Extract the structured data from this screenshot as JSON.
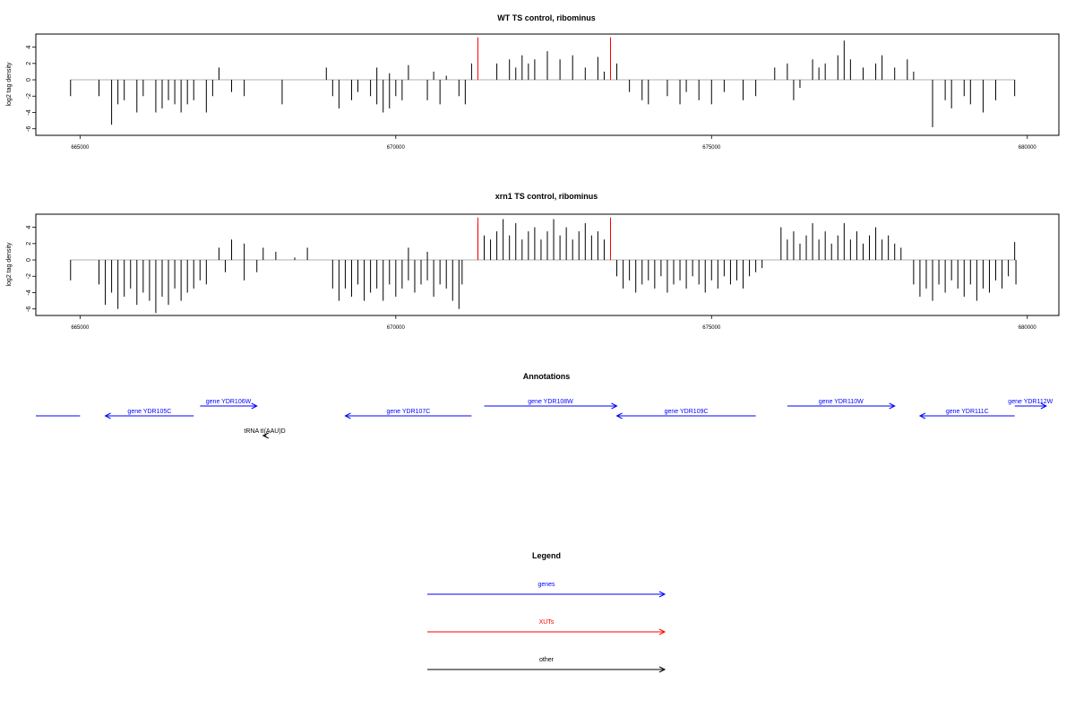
{
  "colors": {
    "genes": "#0000ff",
    "xuts": "#ff0000",
    "other": "#000000",
    "axis": "#000000",
    "baseline": "#999999"
  },
  "chart_data": [
    {
      "type": "bar",
      "title": "WT TS control, ribominus",
      "ylabel": "log2 tag density",
      "xlim": [
        664300,
        680500
      ],
      "ylim": [
        -6.8,
        5.6
      ],
      "xticks": [
        665000,
        670000,
        675000,
        680000
      ],
      "xtick_labels": [
        "665000",
        "670000",
        "675000",
        "680000"
      ],
      "yticks": [
        -6,
        -4,
        -2,
        0,
        2,
        4
      ],
      "ytick_labels": [
        "-6",
        "-4",
        "-2",
        "0",
        "2",
        "4"
      ],
      "grid": false,
      "series": [
        {
          "values": [
            [
              664850,
              -2.0
            ],
            [
              665300,
              -2.0
            ],
            [
              665500,
              -5.5
            ],
            [
              665600,
              -3.0
            ],
            [
              665700,
              -2.5
            ],
            [
              665900,
              -4.0
            ],
            [
              666000,
              -2.0
            ],
            [
              666200,
              -4.0
            ],
            [
              666300,
              -3.5
            ],
            [
              666400,
              -2.5
            ],
            [
              666500,
              -3.0
            ],
            [
              666600,
              -4.0
            ],
            [
              666700,
              -3.0
            ],
            [
              666800,
              -2.5
            ],
            [
              667000,
              -4.0
            ],
            [
              667100,
              -2.0
            ],
            [
              667200,
              1.5
            ],
            [
              667400,
              -1.5
            ],
            [
              667600,
              -2.0
            ],
            [
              668200,
              -3.0
            ],
            [
              668900,
              1.5
            ],
            [
              669000,
              -2.0
            ],
            [
              669100,
              -3.5
            ],
            [
              669300,
              -2.5
            ],
            [
              669400,
              -1.5
            ],
            [
              669600,
              -2.0
            ],
            [
              669700,
              -3.0
            ],
            [
              669800,
              -4.0
            ],
            [
              669900,
              -3.5
            ],
            [
              670000,
              -2.0
            ],
            [
              670100,
              -2.5
            ],
            [
              669900,
              0.8
            ],
            [
              669700,
              1.5
            ],
            [
              670200,
              1.8
            ],
            [
              670500,
              -2.5
            ],
            [
              670600,
              1.0
            ],
            [
              670700,
              -3.0
            ],
            [
              670800,
              0.5
            ],
            [
              671000,
              -2.0
            ],
            [
              671100,
              -3.0
            ],
            [
              671200,
              2.0
            ],
            [
              671600,
              2.0
            ],
            [
              671800,
              2.5
            ],
            [
              671900,
              1.5
            ],
            [
              672000,
              3.0
            ],
            [
              672100,
              2.0
            ],
            [
              672200,
              2.5
            ],
            [
              672400,
              3.5
            ],
            [
              672600,
              2.5
            ],
            [
              672800,
              3.0
            ],
            [
              673000,
              1.5
            ],
            [
              673200,
              2.8
            ],
            [
              673300,
              1.0
            ],
            [
              673500,
              2.0
            ],
            [
              673700,
              -1.5
            ],
            [
              673900,
              -2.5
            ],
            [
              674000,
              -3.0
            ],
            [
              674300,
              -2.0
            ],
            [
              674500,
              -3.0
            ],
            [
              674600,
              -1.5
            ],
            [
              674800,
              -2.5
            ],
            [
              675000,
              -3.0
            ],
            [
              675200,
              -1.5
            ],
            [
              675500,
              -2.5
            ],
            [
              675700,
              -2.0
            ],
            [
              676000,
              1.5
            ],
            [
              676200,
              2.0
            ],
            [
              676300,
              -2.5
            ],
            [
              676400,
              -1.0
            ],
            [
              676600,
              2.5
            ],
            [
              676700,
              1.5
            ],
            [
              676800,
              2.0
            ],
            [
              677000,
              3.0
            ],
            [
              677100,
              4.8
            ],
            [
              677200,
              2.5
            ],
            [
              677400,
              1.5
            ],
            [
              677600,
              2.0
            ],
            [
              677700,
              3.0
            ],
            [
              677900,
              1.5
            ],
            [
              678100,
              2.5
            ],
            [
              678200,
              1.0
            ],
            [
              678500,
              -5.8
            ],
            [
              678700,
              -2.5
            ],
            [
              678800,
              -3.5
            ],
            [
              679000,
              -2.0
            ],
            [
              679100,
              -3.0
            ],
            [
              679300,
              -4.0
            ],
            [
              679500,
              -2.5
            ],
            [
              679800,
              -2.0
            ]
          ]
        },
        {
          "name": "XUTs",
          "values": [
            [
              671300,
              5.2
            ],
            [
              673400,
              5.2
            ]
          ]
        }
      ]
    },
    {
      "type": "bar",
      "title": "xrn1 TS control, ribominus",
      "ylabel": "log2 tag density",
      "xlim": [
        664300,
        680500
      ],
      "ylim": [
        -6.8,
        5.6
      ],
      "xticks": [
        665000,
        670000,
        675000,
        680000
      ],
      "xtick_labels": [
        "665000",
        "670000",
        "675000",
        "680000"
      ],
      "yticks": [
        -6,
        -4,
        -2,
        0,
        2,
        4
      ],
      "ytick_labels": [
        "-6",
        "-4",
        "-2",
        "0",
        "2",
        "4"
      ],
      "grid": false,
      "series": [
        {
          "values": [
            [
              664850,
              -2.5
            ],
            [
              665300,
              -3.0
            ],
            [
              665400,
              -5.5
            ],
            [
              665500,
              -4.0
            ],
            [
              665600,
              -6.0
            ],
            [
              665700,
              -4.5
            ],
            [
              665800,
              -3.5
            ],
            [
              665900,
              -5.5
            ],
            [
              666000,
              -4.0
            ],
            [
              666100,
              -5.0
            ],
            [
              666200,
              -6.5
            ],
            [
              666300,
              -4.5
            ],
            [
              666400,
              -5.5
            ],
            [
              666500,
              -3.5
            ],
            [
              666600,
              -5.0
            ],
            [
              666700,
              -4.0
            ],
            [
              666800,
              -3.5
            ],
            [
              666900,
              -2.5
            ],
            [
              667000,
              -3.0
            ],
            [
              667300,
              -1.5
            ],
            [
              667600,
              -2.5
            ],
            [
              667800,
              -1.5
            ],
            [
              667200,
              1.5
            ],
            [
              667400,
              2.5
            ],
            [
              667600,
              2.0
            ],
            [
              667900,
              1.5
            ],
            [
              668100,
              1.0
            ],
            [
              668600,
              1.5
            ],
            [
              668400,
              0.3
            ],
            [
              669000,
              -3.5
            ],
            [
              669100,
              -5.0
            ],
            [
              669200,
              -3.5
            ],
            [
              669300,
              -4.5
            ],
            [
              669400,
              -3.0
            ],
            [
              669500,
              -5.0
            ],
            [
              669600,
              -4.0
            ],
            [
              669700,
              -3.5
            ],
            [
              669800,
              -5.0
            ],
            [
              669900,
              -3.0
            ],
            [
              670000,
              -4.5
            ],
            [
              670100,
              -3.5
            ],
            [
              670200,
              -2.5
            ],
            [
              670300,
              -4.0
            ],
            [
              670400,
              -3.0
            ],
            [
              670500,
              -2.5
            ],
            [
              670600,
              -4.5
            ],
            [
              670700,
              -3.0
            ],
            [
              670800,
              -3.5
            ],
            [
              670900,
              -5.0
            ],
            [
              671000,
              -6.0
            ],
            [
              671050,
              -3.0
            ],
            [
              670200,
              1.5
            ],
            [
              670500,
              1.0
            ],
            [
              671300,
              4.5
            ],
            [
              671400,
              3.0
            ],
            [
              671500,
              2.5
            ],
            [
              671600,
              3.5
            ],
            [
              671700,
              5.0
            ],
            [
              671800,
              3.0
            ],
            [
              671900,
              4.5
            ],
            [
              672000,
              2.5
            ],
            [
              672100,
              3.5
            ],
            [
              672200,
              4.0
            ],
            [
              672300,
              2.5
            ],
            [
              672400,
              3.5
            ],
            [
              672500,
              5.0
            ],
            [
              672600,
              3.0
            ],
            [
              672700,
              4.0
            ],
            [
              672800,
              2.5
            ],
            [
              672900,
              3.5
            ],
            [
              673000,
              4.5
            ],
            [
              673100,
              3.0
            ],
            [
              673200,
              3.5
            ],
            [
              673300,
              2.5
            ],
            [
              673500,
              -2.0
            ],
            [
              673600,
              -3.5
            ],
            [
              673700,
              -2.5
            ],
            [
              673800,
              -4.0
            ],
            [
              673900,
              -3.0
            ],
            [
              674000,
              -2.5
            ],
            [
              674100,
              -3.5
            ],
            [
              674200,
              -2.0
            ],
            [
              674300,
              -4.0
            ],
            [
              674400,
              -3.0
            ],
            [
              674500,
              -2.5
            ],
            [
              674600,
              -3.5
            ],
            [
              674700,
              -2.0
            ],
            [
              674800,
              -3.0
            ],
            [
              674900,
              -4.0
            ],
            [
              675000,
              -2.5
            ],
            [
              675100,
              -3.5
            ],
            [
              675200,
              -2.0
            ],
            [
              675300,
              -3.0
            ],
            [
              675400,
              -2.5
            ],
            [
              675500,
              -3.5
            ],
            [
              675600,
              -2.0
            ],
            [
              675700,
              -1.5
            ],
            [
              675800,
              -1.0
            ],
            [
              676100,
              4.0
            ],
            [
              676200,
              2.5
            ],
            [
              676300,
              3.5
            ],
            [
              676400,
              2.0
            ],
            [
              676500,
              3.0
            ],
            [
              676600,
              4.5
            ],
            [
              676700,
              2.5
            ],
            [
              676800,
              3.5
            ],
            [
              676900,
              2.0
            ],
            [
              677000,
              3.0
            ],
            [
              677100,
              4.5
            ],
            [
              677200,
              2.5
            ],
            [
              677300,
              3.5
            ],
            [
              677400,
              2.0
            ],
            [
              677500,
              3.0
            ],
            [
              677600,
              4.0
            ],
            [
              677700,
              2.5
            ],
            [
              677800,
              3.0
            ],
            [
              677900,
              2.0
            ],
            [
              678000,
              1.5
            ],
            [
              678200,
              -3.0
            ],
            [
              678300,
              -4.5
            ],
            [
              678400,
              -3.5
            ],
            [
              678500,
              -5.0
            ],
            [
              678600,
              -3.0
            ],
            [
              678700,
              -4.0
            ],
            [
              678800,
              -2.5
            ],
            [
              678900,
              -3.5
            ],
            [
              679000,
              -4.5
            ],
            [
              679100,
              -3.0
            ],
            [
              679200,
              -5.0
            ],
            [
              679300,
              -3.5
            ],
            [
              679400,
              -4.0
            ],
            [
              679500,
              -2.5
            ],
            [
              679600,
              -3.5
            ],
            [
              679700,
              -2.0
            ],
            [
              679800,
              2.2
            ],
            [
              679820,
              -3.0
            ]
          ]
        },
        {
          "name": "XUTs",
          "values": [
            [
              671300,
              5.2
            ],
            [
              673400,
              5.2
            ]
          ]
        }
      ]
    }
  ],
  "annotations": {
    "title": "Annotations",
    "xlim": [
      664300,
      680500
    ],
    "items": [
      {
        "label": "",
        "start": 664300,
        "end": 665000,
        "strand": "none",
        "category": "genes",
        "row": 1
      },
      {
        "label": "gene YDR105C",
        "start": 665400,
        "end": 666800,
        "strand": "-",
        "category": "genes",
        "row": 1
      },
      {
        "label": "gene YDR106W",
        "start": 666900,
        "end": 667800,
        "strand": "+",
        "category": "genes",
        "row": 0
      },
      {
        "label": "tRNA tI(AAU)D",
        "start": 667900,
        "end": 667950,
        "strand": "-",
        "category": "other",
        "row": 2
      },
      {
        "label": "gene YDR107C",
        "start": 669200,
        "end": 671200,
        "strand": "-",
        "category": "genes",
        "row": 1
      },
      {
        "label": "gene YDR108W",
        "start": 671400,
        "end": 673500,
        "strand": "+",
        "category": "genes",
        "row": 0
      },
      {
        "label": "gene YDR109C",
        "start": 673500,
        "end": 675700,
        "strand": "-",
        "category": "genes",
        "row": 1
      },
      {
        "label": "gene YDR110W",
        "start": 676200,
        "end": 677900,
        "strand": "+",
        "category": "genes",
        "row": 0
      },
      {
        "label": "gene YDR111C",
        "start": 678300,
        "end": 679800,
        "strand": "-",
        "category": "genes",
        "row": 1
      },
      {
        "label": "gene YDR112W",
        "start": 679800,
        "end": 680300,
        "strand": "+",
        "category": "genes",
        "row": 0
      }
    ]
  },
  "legend": {
    "title": "Legend",
    "items": [
      {
        "label": "genes",
        "category": "genes"
      },
      {
        "label": "XUTs",
        "category": "xuts"
      },
      {
        "label": "other",
        "category": "other"
      }
    ]
  }
}
